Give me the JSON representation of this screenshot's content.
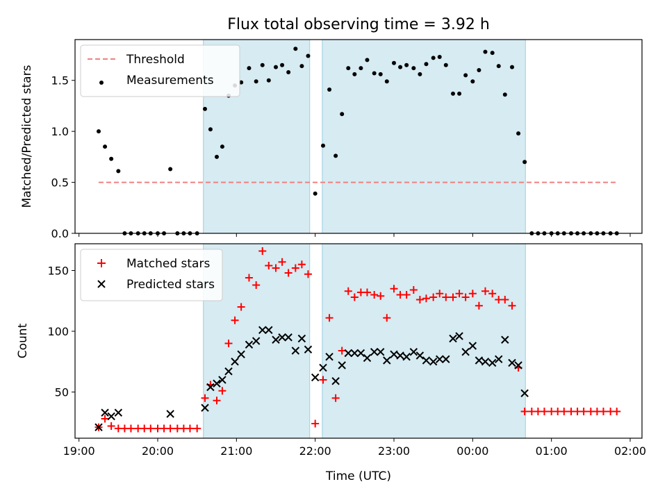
{
  "chart_data": {
    "title": "Flux total observing time = 3.92 h",
    "xlabel": "Time (UTC)",
    "x_unit": "hours since 19:00 UTC (19:00 = 0, 02:00 next day = 7)",
    "xlim": [
      -0.05,
      7.15
    ],
    "x_ticks": [
      0,
      1,
      2,
      3,
      4,
      5,
      6,
      7
    ],
    "x_tick_labels": [
      "19:00",
      "20:00",
      "21:00",
      "22:00",
      "23:00",
      "00:00",
      "01:00",
      "02:00"
    ],
    "observing_windows": [
      [
        1.58,
        2.93
      ],
      [
        3.09,
        5.67
      ]
    ],
    "panels": [
      {
        "type": "scatter",
        "ylabel": "Matched/Predicted stars",
        "ylim": [
          0,
          1.9
        ],
        "y_ticks": [
          0.0,
          0.5,
          1.0,
          1.5
        ],
        "y_tick_labels": [
          "0.0",
          "0.5",
          "1.0",
          "1.5"
        ],
        "legend_position": "upper-left",
        "threshold": {
          "name": "Threshold",
          "value": 0.5,
          "x_range": [
            0.25,
            6.85
          ],
          "color": "#f08080"
        },
        "series": [
          {
            "name": "Measurements",
            "marker": "dot",
            "color": "#000000",
            "points": [
              [
                0.25,
                1.0
              ],
              [
                0.33,
                0.85
              ],
              [
                0.41,
                0.73
              ],
              [
                0.5,
                0.61
              ],
              [
                0.58,
                0.0
              ],
              [
                0.66,
                0.0
              ],
              [
                0.75,
                0.0
              ],
              [
                0.83,
                0.0
              ],
              [
                0.91,
                0.0
              ],
              [
                1.0,
                0.0
              ],
              [
                1.08,
                0.0
              ],
              [
                1.16,
                0.63
              ],
              [
                1.25,
                0.0
              ],
              [
                1.33,
                0.0
              ],
              [
                1.41,
                0.0
              ],
              [
                1.5,
                0.0
              ],
              [
                1.6,
                1.22
              ],
              [
                1.67,
                1.02
              ],
              [
                1.75,
                0.75
              ],
              [
                1.82,
                0.85
              ],
              [
                1.9,
                1.35
              ],
              [
                1.98,
                1.45
              ],
              [
                2.06,
                1.48
              ],
              [
                2.16,
                1.62
              ],
              [
                2.25,
                1.49
              ],
              [
                2.33,
                1.65
              ],
              [
                2.41,
                1.5
              ],
              [
                2.5,
                1.63
              ],
              [
                2.58,
                1.65
              ],
              [
                2.66,
                1.58
              ],
              [
                2.75,
                1.81
              ],
              [
                2.83,
                1.64
              ],
              [
                2.91,
                1.74
              ],
              [
                3.0,
                0.39
              ],
              [
                3.1,
                0.86
              ],
              [
                3.18,
                1.41
              ],
              [
                3.26,
                0.76
              ],
              [
                3.34,
                1.17
              ],
              [
                3.42,
                1.62
              ],
              [
                3.5,
                1.56
              ],
              [
                3.58,
                1.62
              ],
              [
                3.66,
                1.7
              ],
              [
                3.75,
                1.57
              ],
              [
                3.83,
                1.56
              ],
              [
                3.91,
                1.49
              ],
              [
                4.0,
                1.67
              ],
              [
                4.08,
                1.63
              ],
              [
                4.16,
                1.65
              ],
              [
                4.25,
                1.62
              ],
              [
                4.33,
                1.56
              ],
              [
                4.41,
                1.66
              ],
              [
                4.5,
                1.72
              ],
              [
                4.58,
                1.73
              ],
              [
                4.66,
                1.65
              ],
              [
                4.75,
                1.37
              ],
              [
                4.83,
                1.37
              ],
              [
                4.91,
                1.55
              ],
              [
                5.0,
                1.49
              ],
              [
                5.08,
                1.6
              ],
              [
                5.16,
                1.78
              ],
              [
                5.25,
                1.77
              ],
              [
                5.33,
                1.64
              ],
              [
                5.41,
                1.36
              ],
              [
                5.5,
                1.63
              ],
              [
                5.58,
                0.98
              ],
              [
                5.66,
                0.7
              ],
              [
                5.75,
                0.0
              ],
              [
                5.83,
                0.0
              ],
              [
                5.91,
                0.0
              ],
              [
                6.0,
                0.0
              ],
              [
                6.08,
                0.0
              ],
              [
                6.16,
                0.0
              ],
              [
                6.25,
                0.0
              ],
              [
                6.33,
                0.0
              ],
              [
                6.41,
                0.0
              ],
              [
                6.5,
                0.0
              ],
              [
                6.58,
                0.0
              ],
              [
                6.66,
                0.0
              ],
              [
                6.75,
                0.0
              ],
              [
                6.83,
                0.0
              ]
            ]
          }
        ]
      },
      {
        "type": "scatter",
        "ylabel": "Count",
        "ylim": [
          12,
          172
        ],
        "y_ticks": [
          50,
          100,
          150
        ],
        "y_tick_labels": [
          "50",
          "100",
          "150"
        ],
        "legend_position": "upper-left",
        "series": [
          {
            "name": "Matched stars",
            "marker": "plus",
            "color": "#ff0000",
            "points": [
              [
                0.25,
                21
              ],
              [
                0.33,
                28
              ],
              [
                0.41,
                22
              ],
              [
                0.5,
                20
              ],
              [
                0.58,
                20
              ],
              [
                0.66,
                20
              ],
              [
                0.75,
                20
              ],
              [
                0.83,
                20
              ],
              [
                0.91,
                20
              ],
              [
                1.0,
                20
              ],
              [
                1.08,
                20
              ],
              [
                1.16,
                20
              ],
              [
                1.25,
                20
              ],
              [
                1.33,
                20
              ],
              [
                1.41,
                20
              ],
              [
                1.5,
                20
              ],
              [
                1.6,
                45
              ],
              [
                1.67,
                56
              ],
              [
                1.75,
                43
              ],
              [
                1.82,
                51
              ],
              [
                1.9,
                90
              ],
              [
                1.98,
                109
              ],
              [
                2.06,
                120
              ],
              [
                2.16,
                144
              ],
              [
                2.25,
                138
              ],
              [
                2.33,
                166
              ],
              [
                2.41,
                154
              ],
              [
                2.5,
                152
              ],
              [
                2.58,
                157
              ],
              [
                2.66,
                148
              ],
              [
                2.75,
                152
              ],
              [
                2.83,
                155
              ],
              [
                2.91,
                147
              ],
              [
                3.0,
                24
              ],
              [
                3.1,
                60
              ],
              [
                3.18,
                111
              ],
              [
                3.26,
                45
              ],
              [
                3.34,
                84
              ],
              [
                3.42,
                133
              ],
              [
                3.5,
                128
              ],
              [
                3.58,
                132
              ],
              [
                3.66,
                132
              ],
              [
                3.75,
                130
              ],
              [
                3.83,
                129
              ],
              [
                3.91,
                111
              ],
              [
                4.0,
                135
              ],
              [
                4.08,
                130
              ],
              [
                4.16,
                130
              ],
              [
                4.25,
                134
              ],
              [
                4.33,
                126
              ],
              [
                4.41,
                127
              ],
              [
                4.5,
                128
              ],
              [
                4.58,
                131
              ],
              [
                4.66,
                128
              ],
              [
                4.75,
                128
              ],
              [
                4.83,
                131
              ],
              [
                4.91,
                128
              ],
              [
                5.0,
                131
              ],
              [
                5.08,
                121
              ],
              [
                5.16,
                133
              ],
              [
                5.25,
                131
              ],
              [
                5.33,
                126
              ],
              [
                5.41,
                126
              ],
              [
                5.5,
                121
              ],
              [
                5.58,
                70
              ],
              [
                5.66,
                34
              ],
              [
                5.75,
                34
              ],
              [
                5.83,
                34
              ],
              [
                5.91,
                34
              ],
              [
                6.0,
                34
              ],
              [
                6.08,
                34
              ],
              [
                6.16,
                34
              ],
              [
                6.25,
                34
              ],
              [
                6.33,
                34
              ],
              [
                6.41,
                34
              ],
              [
                6.5,
                34
              ],
              [
                6.58,
                34
              ],
              [
                6.66,
                34
              ],
              [
                6.75,
                34
              ],
              [
                6.83,
                34
              ]
            ]
          },
          {
            "name": "Predicted stars",
            "marker": "x",
            "color": "#000000",
            "points": [
              [
                0.25,
                21
              ],
              [
                0.33,
                33
              ],
              [
                0.41,
                30
              ],
              [
                0.5,
                33
              ],
              [
                1.16,
                32
              ],
              [
                1.6,
                37
              ],
              [
                1.67,
                54
              ],
              [
                1.75,
                57
              ],
              [
                1.82,
                60
              ],
              [
                1.9,
                67
              ],
              [
                1.98,
                75
              ],
              [
                2.06,
                81
              ],
              [
                2.16,
                89
              ],
              [
                2.25,
                92
              ],
              [
                2.33,
                101
              ],
              [
                2.41,
                101
              ],
              [
                2.5,
                93
              ],
              [
                2.58,
                95
              ],
              [
                2.66,
                95
              ],
              [
                2.75,
                84
              ],
              [
                2.83,
                94
              ],
              [
                2.91,
                85
              ],
              [
                3.0,
                62
              ],
              [
                3.1,
                70
              ],
              [
                3.18,
                79
              ],
              [
                3.26,
                59
              ],
              [
                3.34,
                72
              ],
              [
                3.42,
                82
              ],
              [
                3.5,
                82
              ],
              [
                3.58,
                82
              ],
              [
                3.66,
                78
              ],
              [
                3.75,
                83
              ],
              [
                3.83,
                83
              ],
              [
                3.91,
                76
              ],
              [
                4.0,
                81
              ],
              [
                4.08,
                80
              ],
              [
                4.16,
                79
              ],
              [
                4.25,
                83
              ],
              [
                4.33,
                80
              ],
              [
                4.41,
                76
              ],
              [
                4.5,
                75
              ],
              [
                4.58,
                77
              ],
              [
                4.66,
                77
              ],
              [
                4.75,
                94
              ],
              [
                4.83,
                96
              ],
              [
                4.91,
                83
              ],
              [
                5.0,
                88
              ],
              [
                5.08,
                76
              ],
              [
                5.16,
                75
              ],
              [
                5.25,
                74
              ],
              [
                5.33,
                77
              ],
              [
                5.41,
                93
              ],
              [
                5.5,
                74
              ],
              [
                5.58,
                72
              ],
              [
                5.66,
                49
              ]
            ]
          }
        ]
      }
    ]
  }
}
